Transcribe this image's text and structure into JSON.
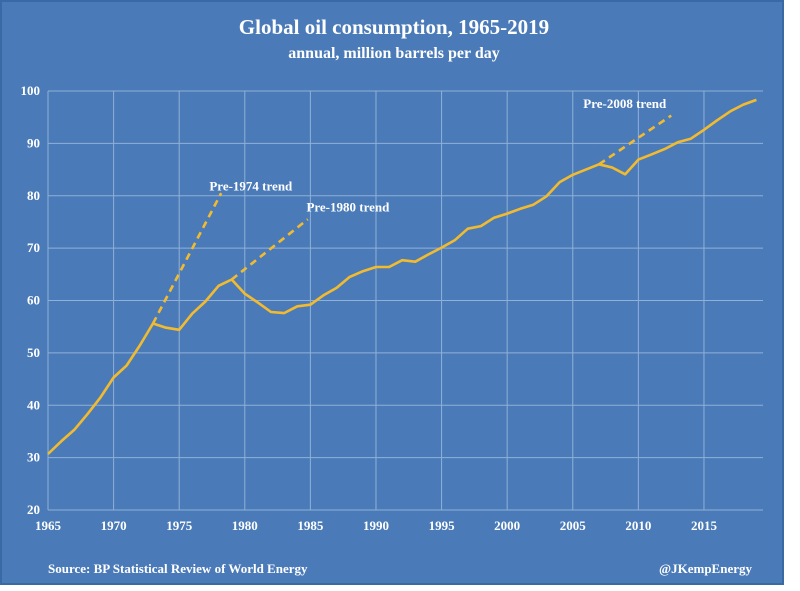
{
  "chart_data": {
    "type": "line",
    "title": "Global oil consumption, 1965-2019",
    "subtitle": "annual, million barrels per day",
    "xlabel": "",
    "ylabel": "",
    "xlim": [
      1965,
      2019.5
    ],
    "ylim": [
      20,
      100
    ],
    "xticks": [
      1965,
      1970,
      1975,
      1980,
      1985,
      1990,
      1995,
      2000,
      2005,
      2010,
      2015
    ],
    "yticks": [
      20,
      30,
      40,
      50,
      60,
      70,
      80,
      90,
      100
    ],
    "grid": true,
    "color": "#f2bb2f",
    "series": [
      {
        "name": "Global oil consumption",
        "style": "solid",
        "x": [
          1965,
          1966,
          1967,
          1968,
          1969,
          1970,
          1971,
          1972,
          1973,
          1974,
          1975,
          1976,
          1977,
          1978,
          1979,
          1980,
          1981,
          1982,
          1983,
          1984,
          1985,
          1986,
          1987,
          1988,
          1989,
          1990,
          1991,
          1992,
          1993,
          1994,
          1995,
          1996,
          1997,
          1998,
          1999,
          2000,
          2001,
          2002,
          2003,
          2004,
          2005,
          2006,
          2007,
          2008,
          2009,
          2010,
          2011,
          2012,
          2013,
          2014,
          2015,
          2016,
          2017,
          2018,
          2019
        ],
        "values": [
          30.7,
          33.1,
          35.3,
          38.3,
          41.5,
          45.3,
          47.6,
          51.4,
          55.6,
          54.8,
          54.4,
          57.5,
          59.8,
          62.8,
          64.0,
          61.3,
          59.6,
          57.8,
          57.6,
          58.9,
          59.2,
          61.0,
          62.4,
          64.5,
          65.6,
          66.4,
          66.4,
          67.7,
          67.4,
          68.8,
          70.1,
          71.5,
          73.7,
          74.2,
          75.8,
          76.6,
          77.5,
          78.3,
          79.9,
          82.6,
          84.0,
          85.0,
          86.0,
          85.4,
          84.1,
          86.9,
          87.9,
          88.9,
          90.2,
          90.9,
          92.6,
          94.4,
          96.1,
          97.4,
          98.3
        ]
      },
      {
        "name": "Pre-1974 trend",
        "style": "dashed",
        "x": [
          1973,
          1978.2
        ],
        "values": [
          55.6,
          80.5
        ]
      },
      {
        "name": "Pre-1980 trend",
        "style": "dashed",
        "x": [
          1979,
          1984.8
        ],
        "values": [
          64.0,
          75.5
        ]
      },
      {
        "name": "Pre-2008 trend",
        "style": "dashed",
        "x": [
          2007,
          2012.5
        ],
        "values": [
          86.0,
          95.3
        ]
      }
    ],
    "annotations": [
      {
        "text": "Pre-1974 trend",
        "x": 1977.3,
        "y": 81.0
      },
      {
        "text": "Pre-1980 trend",
        "x": 1984.7,
        "y": 77.0
      },
      {
        "text": "Pre-2008 trend",
        "x": 2005.8,
        "y": 96.8
      }
    ]
  },
  "footer": {
    "source": "Source: BP Statistical Review of World Energy",
    "handle": "@JKempEnergy"
  }
}
